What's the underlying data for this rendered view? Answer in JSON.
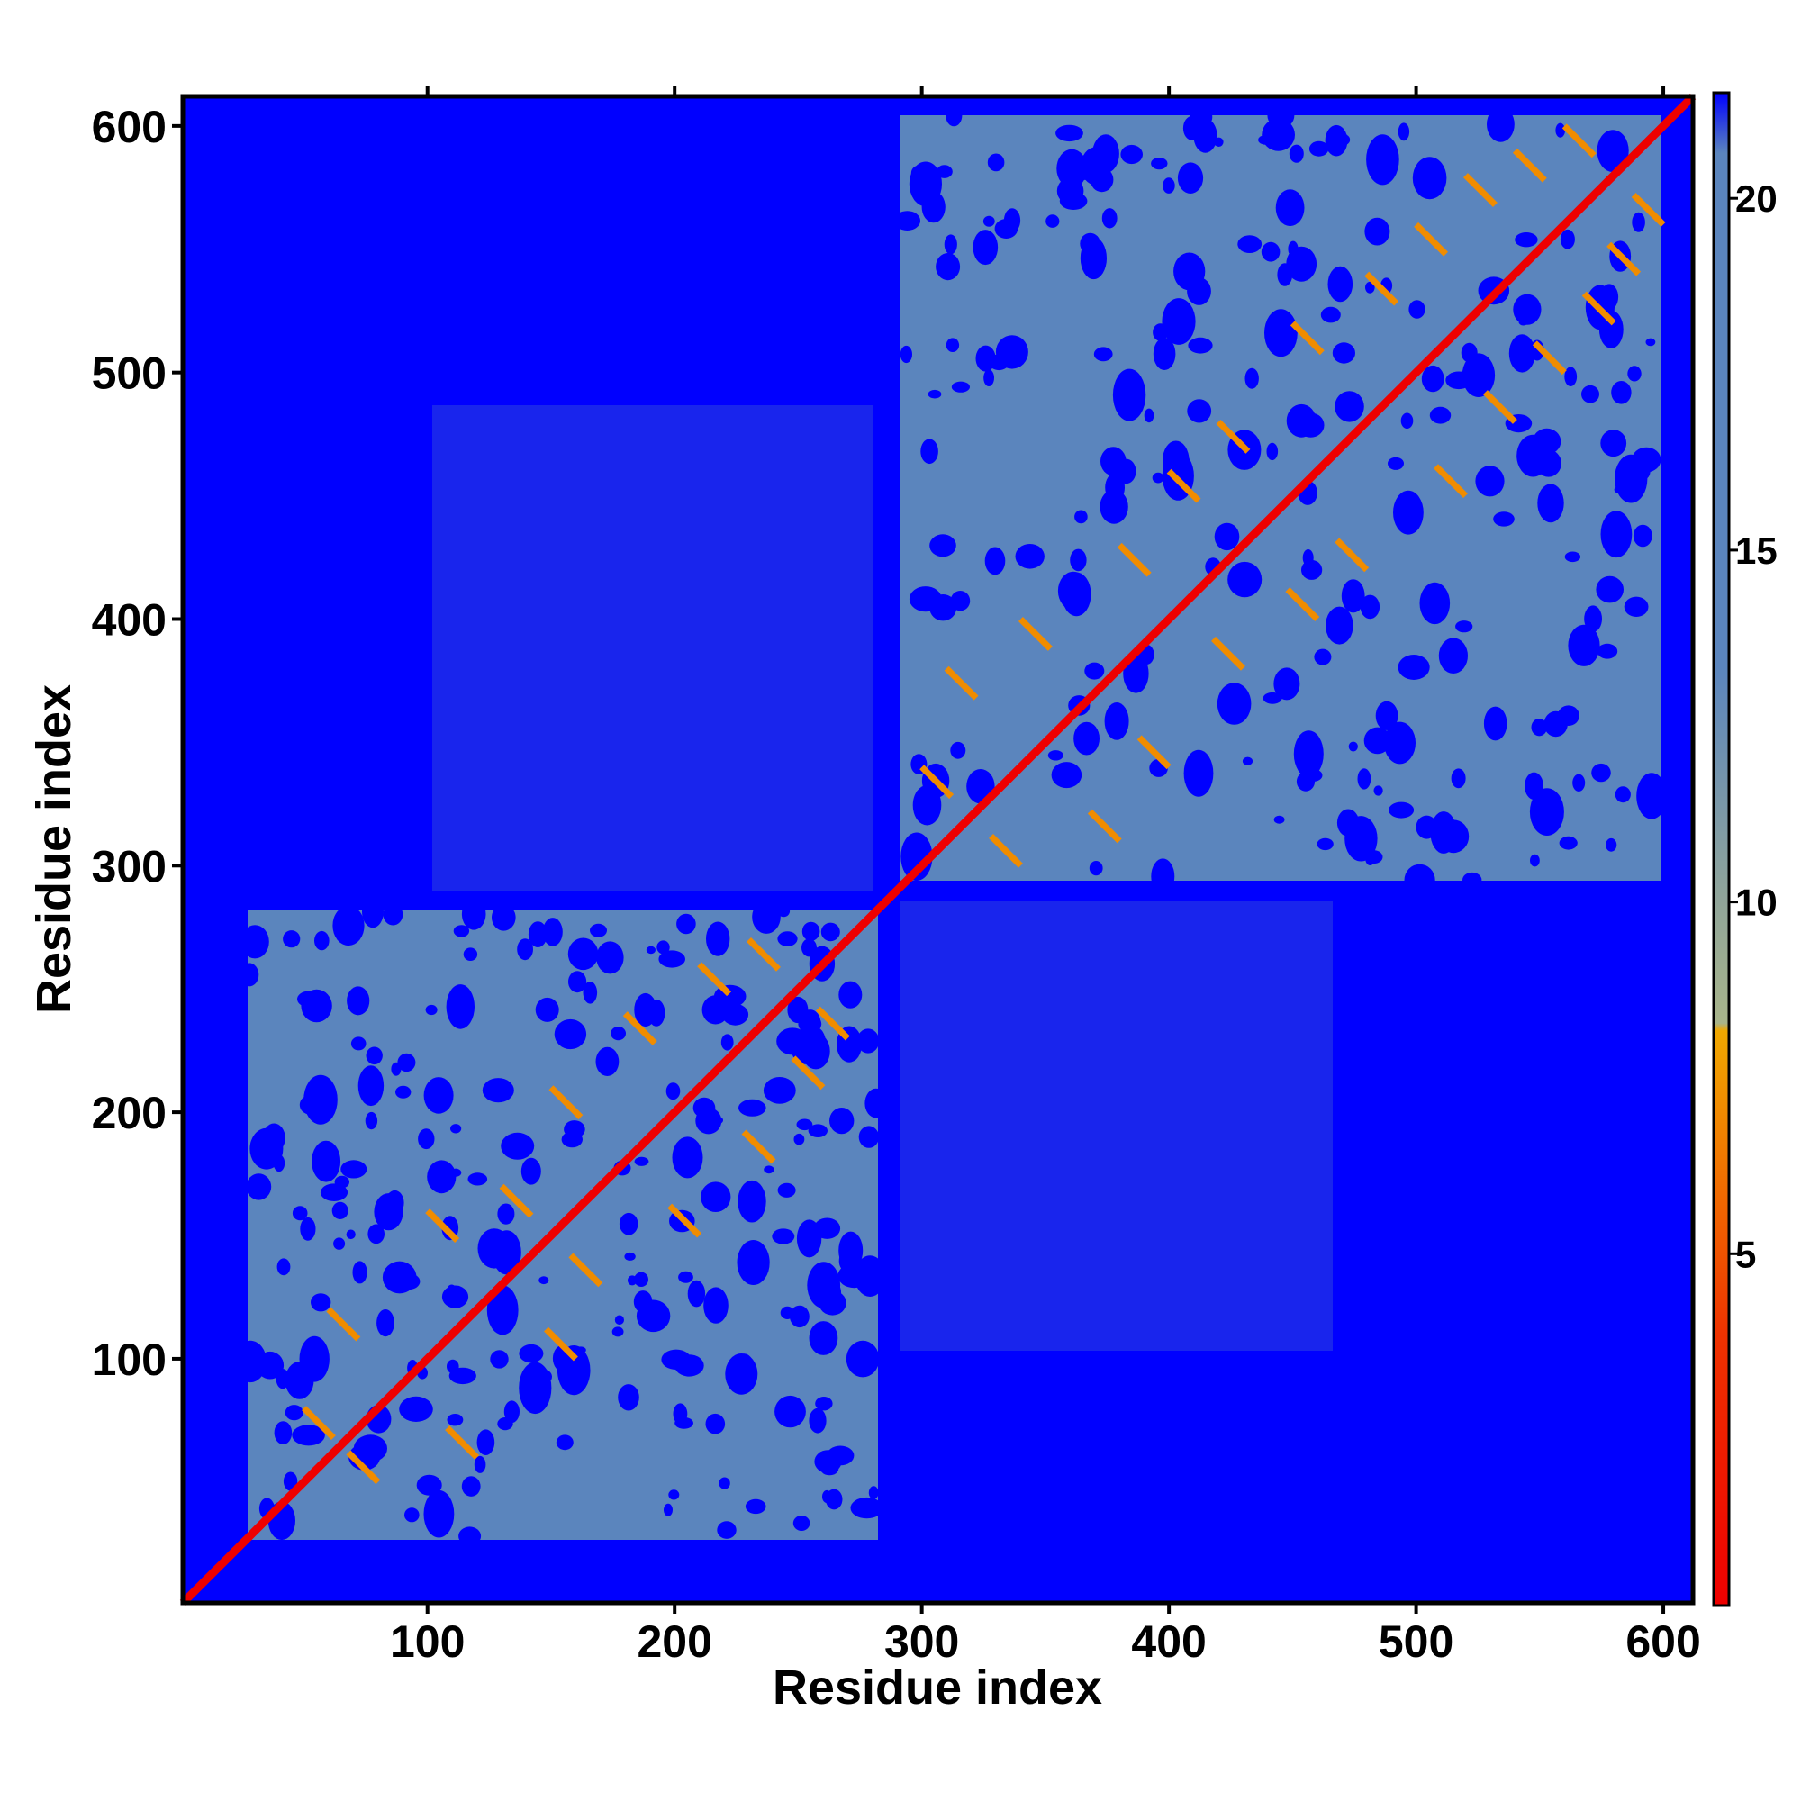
{
  "chart_data": {
    "type": "heatmap",
    "title": "",
    "xlabel": "Residue index",
    "ylabel": "Residue index",
    "xlim": [
      1,
      612
    ],
    "ylim": [
      1,
      612
    ],
    "x_ticks": [
      100,
      200,
      300,
      400,
      500,
      600
    ],
    "y_ticks": [
      100,
      200,
      300,
      400,
      500,
      600
    ],
    "colorbar": {
      "range": [
        0,
        21.5
      ],
      "ticks": [
        5,
        10,
        15,
        20
      ],
      "colors": {
        "far": "#0000ff",
        "mid": "#5b85bd",
        "transition": "#a8b48a",
        "near_orange": "#f08c00",
        "near_red": "#ee0000"
      }
    },
    "domains": [
      {
        "start": 1,
        "end": 280,
        "background": 16
      },
      {
        "start": 296,
        "end": 606,
        "background": 16
      }
    ],
    "inter_domain_contact_bands": [
      {
        "x": [
          100,
          280
        ],
        "y": [
          300,
          500
        ]
      },
      {
        "x": [
          296,
          470
        ],
        "y": [
          100,
          280
        ]
      }
    ],
    "diagonal": {
      "start": 1,
      "end": 612,
      "value": 2
    }
  }
}
